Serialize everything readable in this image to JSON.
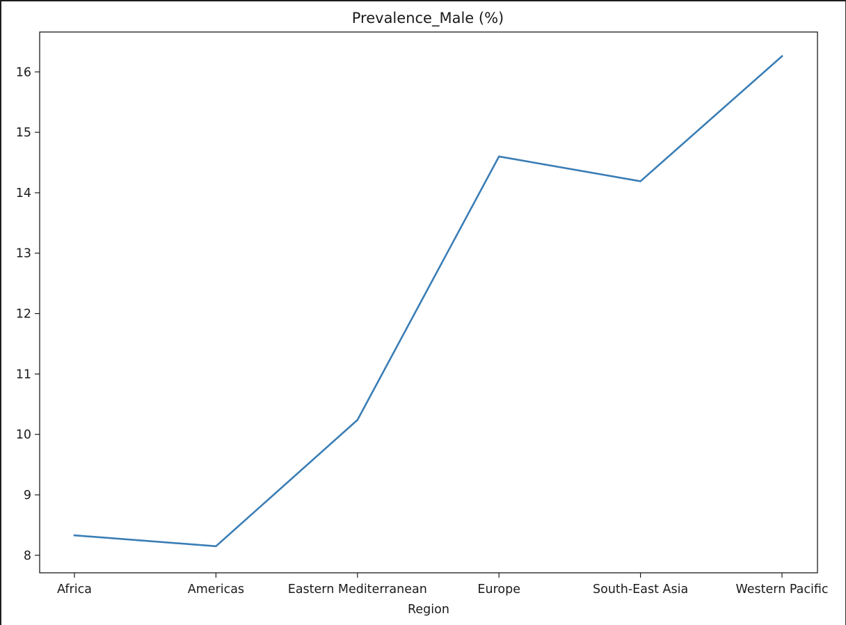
{
  "chart_data": {
    "type": "line",
    "title": "Prevalence_Male (%)",
    "xlabel": "Region",
    "ylabel": "",
    "categories": [
      "Africa",
      "Americas",
      "Eastern Mediterranean",
      "Europe",
      "South-East Asia",
      "Western Pacific"
    ],
    "series": [
      {
        "values": [
          8.33,
          8.15,
          10.24,
          14.6,
          14.19,
          16.26
        ]
      }
    ],
    "ylim": [
      7.71,
      16.66
    ],
    "yticks": [
      8,
      9,
      10,
      11,
      12,
      13,
      14,
      15,
      16
    ],
    "line_color": "#3a7db5",
    "grid": false,
    "legend": "none"
  }
}
